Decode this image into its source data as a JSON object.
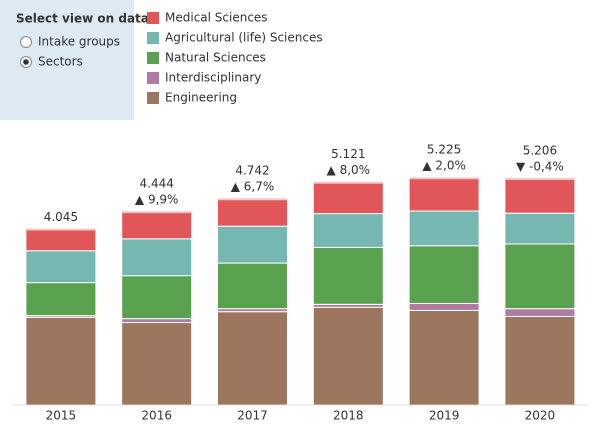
{
  "controls": {
    "title": "Select view on data",
    "options": [
      "Intake groups",
      "Sectors"
    ],
    "selected": 1
  },
  "chart_data": {
    "type": "stacked-bar",
    "categories": [
      "2015",
      "2016",
      "2017",
      "2018",
      "2019",
      "2020"
    ],
    "totals": [
      4045,
      4444,
      4742,
      5121,
      5225,
      5206
    ],
    "value_labels": [
      "4.045",
      "4.444",
      "4.742",
      "5.121",
      "5.225",
      "5.206"
    ],
    "change_labels": [
      null,
      "▲ 9,9%",
      "▲ 6,7%",
      "▲ 8,0%",
      "▲ 2,0%",
      "▼ -0,4%"
    ],
    "series": [
      {
        "name": "Medical Sciences",
        "color": "#e15759",
        "values": [
          490,
          614,
          622,
          711,
          755,
          786
        ]
      },
      {
        "name": "Agricultural (life) Sciences",
        "color": "#76b7b2",
        "values": [
          735,
          850,
          850,
          780,
          800,
          710
        ]
      },
      {
        "name": "Natural Sciences",
        "color": "#59a14f",
        "values": [
          760,
          990,
          1050,
          1310,
          1330,
          1490
        ]
      },
      {
        "name": "Interdisciplinary",
        "color": "#b07aa1",
        "values": [
          40,
          90,
          70,
          70,
          160,
          180
        ]
      },
      {
        "name": "Engineering",
        "color": "#9c755f",
        "values": [
          2020,
          1900,
          2150,
          2250,
          2180,
          2040
        ]
      }
    ]
  }
}
